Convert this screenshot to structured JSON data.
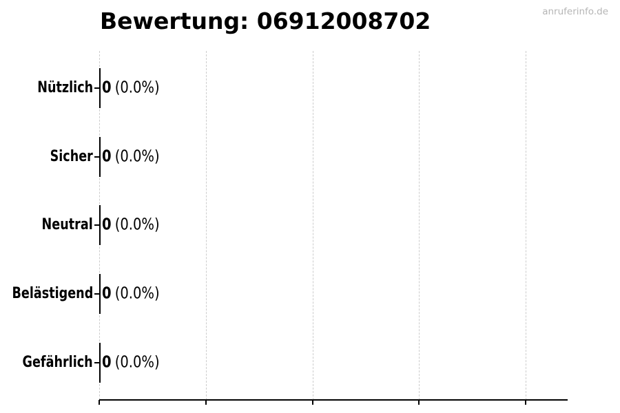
{
  "header": {
    "watermark": "anruferinfo.de"
  },
  "chart_data": {
    "type": "bar",
    "orientation": "horizontal",
    "title": "Bewertung: 06912008702",
    "categories": [
      "Nützlich",
      "Sicher",
      "Neutral",
      "Belästigend",
      "Gefährlich"
    ],
    "values": [
      0,
      0,
      0,
      0,
      0
    ],
    "percentages": [
      0.0,
      0.0,
      0.0,
      0.0,
      0.0
    ],
    "rows": [
      {
        "label": "Nützlich",
        "value": "0",
        "percent": "(0.0%)"
      },
      {
        "label": "Sicher",
        "value": "0",
        "percent": "(0.0%)"
      },
      {
        "label": "Neutral",
        "value": "0",
        "percent": "(0.0%)"
      },
      {
        "label": "Belästigend",
        "value": "0",
        "percent": "(0.0%)"
      },
      {
        "label": "Gefährlich",
        "value": "0",
        "percent": "(0.0%)"
      }
    ],
    "xlabel": "",
    "ylabel": "",
    "x_axis": {
      "gridline_count": 5,
      "tick_labels": [],
      "grid_style": "dashed",
      "grid_color": "#cccccc"
    },
    "legend": null,
    "bar_edge_color": "#000000",
    "background": "#ffffff"
  },
  "colors": {
    "text": "#000000",
    "axis": "#000000",
    "grid": "#cccccc",
    "watermark": "#b5b5b5",
    "background": "#ffffff"
  }
}
